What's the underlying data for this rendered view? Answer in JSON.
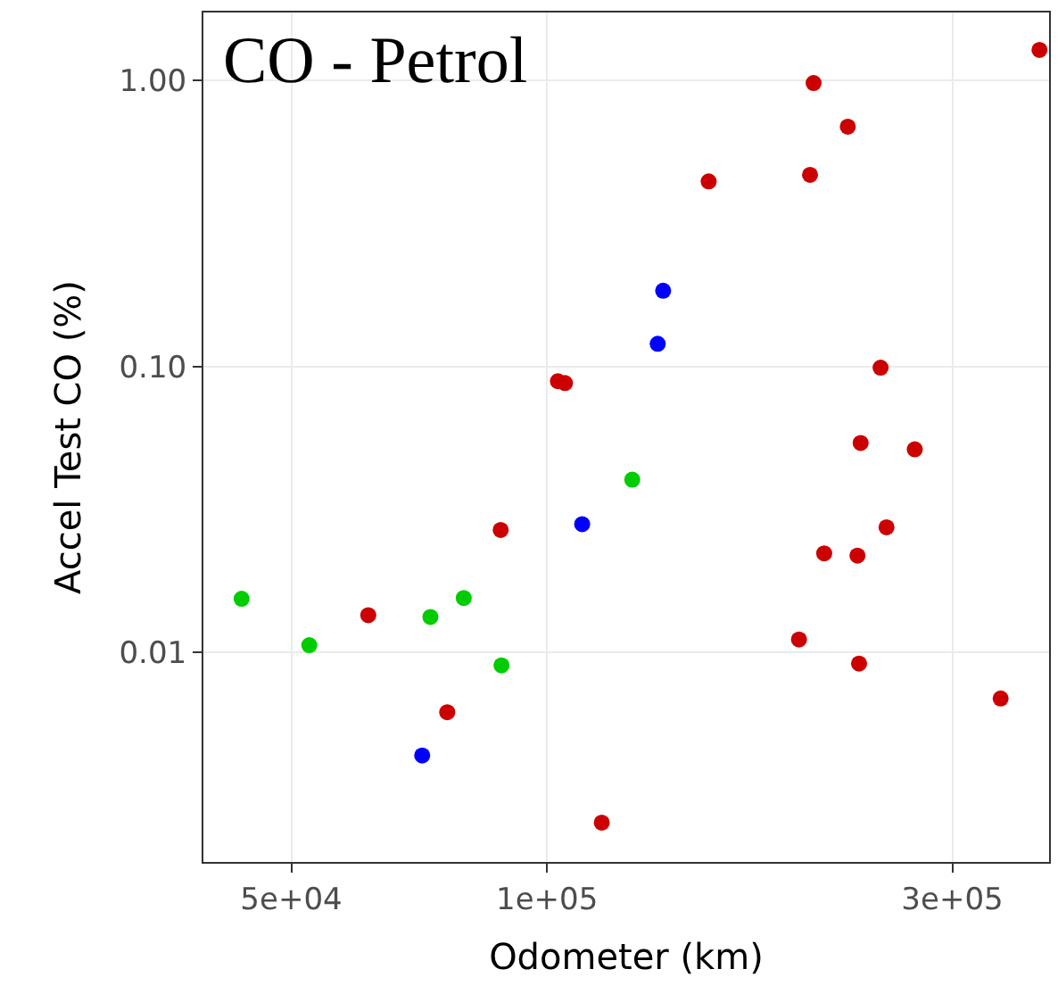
{
  "chart_data": {
    "type": "scatter",
    "title": "CO - Petrol",
    "xlabel": "Odometer (km)",
    "ylabel": "Accel Test CO (%)",
    "log": "xy",
    "grid": true,
    "marker": "circle",
    "xlim": [
      39400,
      390000
    ],
    "ylim": [
      0.00185,
      1.73
    ],
    "xticks": [
      {
        "value": 50000,
        "label": "5e+04"
      },
      {
        "value": 100000,
        "label": "1e+05"
      },
      {
        "value": 300000,
        "label": "3e+05"
      }
    ],
    "yticks": [
      {
        "value": 0.01,
        "label": "0.01"
      },
      {
        "value": 0.1,
        "label": "0.10"
      },
      {
        "value": 1,
        "label": "1.00"
      }
    ],
    "series": [
      {
        "color": "#cc0000",
        "x": [
          380000,
          206000,
          226000,
          155000,
          204000,
          103000,
          105000,
          247000,
          234000,
          271000,
          88200,
          251000,
          212000,
          232000,
          61600,
          198000,
          233000,
          342000,
          76300,
          116000
        ],
        "values": [
          1.28,
          0.98,
          0.69,
          0.444,
          0.468,
          0.0888,
          0.0875,
          0.099,
          0.054,
          0.0513,
          0.0268,
          0.0274,
          0.0222,
          0.0218,
          0.0135,
          0.0111,
          0.00914,
          0.0069,
          0.00618,
          0.00254
        ]
      },
      {
        "color": "#0000ff",
        "x": [
          137000,
          135000,
          110000,
          71300
        ],
        "values": [
          0.184,
          0.12,
          0.0281,
          0.00436
        ]
      },
      {
        "color": "#00cc00",
        "x": [
          126000,
          43700,
          72900,
          79800,
          52500,
          88400
        ],
        "values": [
          0.0402,
          0.0154,
          0.0133,
          0.0155,
          0.0106,
          0.00901
        ]
      }
    ]
  }
}
